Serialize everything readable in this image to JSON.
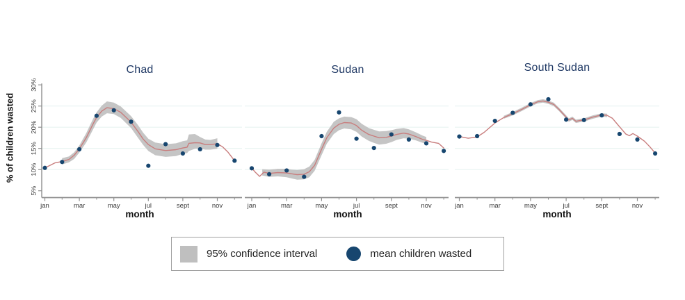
{
  "figure": {
    "y_axis_title": "% of children wasted",
    "x_axis_title": "month",
    "y_ticks": {
      "values": [
        5,
        10,
        15,
        20,
        25,
        30
      ],
      "labels": [
        "5%",
        "10%",
        "15%",
        "20%",
        "25%",
        "30%"
      ]
    },
    "gridline_values": [
      10,
      15,
      20,
      25
    ],
    "x_ticks": {
      "months": [
        1,
        3,
        5,
        7,
        9,
        11
      ],
      "labels": [
        "jan",
        "mar",
        "may",
        "jul",
        "sept",
        "nov"
      ],
      "minor_months": [
        2,
        4,
        6,
        8,
        10,
        12
      ]
    }
  },
  "legend": {
    "ci_label": "95% confidence interval",
    "mean_label": "mean children wasted"
  },
  "colors": {
    "title_text": "#1f3864",
    "mean_dot": "#17466f",
    "trend_line": "#c87d7d",
    "ci_band": "#c5c5c5",
    "gridline": "#e7f3f1",
    "axis": "#8f8f8f",
    "tick_text": "#3b3b3b",
    "legend_swatch": "#bfbfbf",
    "legend_border": "#a0a0a0"
  },
  "chart_data": [
    {
      "type": "line",
      "title": "Chad",
      "xlabel": "month",
      "ylabel": "% of children wasted",
      "ylim": [
        5,
        30
      ],
      "x_range_months": [
        1,
        12
      ],
      "months": [
        "jan",
        "feb",
        "mar",
        "apr",
        "may",
        "jun",
        "jul",
        "aug",
        "sep",
        "oct",
        "nov",
        "dec"
      ],
      "mean_monthly": [
        10.4,
        11.8,
        14.8,
        22.7,
        24.0,
        21.3,
        10.9,
        16.0,
        13.8,
        14.8,
        15.8,
        12.1
      ],
      "smooth_line": [
        [
          1,
          10.4
        ],
        [
          1.3,
          11.0
        ],
        [
          1.6,
          11.6
        ],
        [
          2,
          11.9
        ],
        [
          2.4,
          12.4
        ],
        [
          2.7,
          13.4
        ],
        [
          3,
          14.9
        ],
        [
          3.4,
          17.5
        ],
        [
          3.8,
          20.8
        ],
        [
          4,
          22.3
        ],
        [
          4.3,
          23.8
        ],
        [
          4.6,
          24.6
        ],
        [
          5,
          24.4
        ],
        [
          5.4,
          23.5
        ],
        [
          6,
          21.2
        ],
        [
          6.4,
          19.0
        ],
        [
          6.7,
          17.2
        ],
        [
          7,
          15.9
        ],
        [
          7.4,
          14.9
        ],
        [
          8,
          14.5
        ],
        [
          8.6,
          14.7
        ],
        [
          9,
          15.1
        ],
        [
          9.25,
          15.3
        ],
        [
          9.35,
          16.2
        ],
        [
          9.7,
          16.35
        ],
        [
          10,
          16.3
        ],
        [
          10.3,
          15.9
        ],
        [
          10.6,
          15.9
        ],
        [
          11,
          16.1
        ],
        [
          11.3,
          15.4
        ],
        [
          11.6,
          14.2
        ],
        [
          12,
          12.1
        ]
      ],
      "ci_band": [
        [
          2,
          11.2,
          12.7
        ],
        [
          2.4,
          11.7,
          13.1
        ],
        [
          2.7,
          12.5,
          14.1
        ],
        [
          3,
          14.0,
          15.7
        ],
        [
          3.4,
          16.4,
          18.6
        ],
        [
          3.8,
          19.5,
          22.0
        ],
        [
          4,
          21.1,
          23.5
        ],
        [
          4.3,
          22.5,
          25.1
        ],
        [
          4.6,
          23.3,
          26.1
        ],
        [
          5,
          23.1,
          25.8
        ],
        [
          5.4,
          22.2,
          24.9
        ],
        [
          6,
          19.8,
          22.6
        ],
        [
          6.4,
          17.5,
          20.5
        ],
        [
          6.7,
          15.8,
          18.7
        ],
        [
          7,
          14.4,
          17.3
        ],
        [
          7.4,
          13.4,
          16.4
        ],
        [
          8,
          13.0,
          16.0
        ],
        [
          8.6,
          13.2,
          16.2
        ],
        [
          9,
          13.7,
          16.7
        ],
        [
          9.25,
          13.9,
          16.9
        ],
        [
          9.35,
          14.4,
          18.3
        ],
        [
          9.7,
          14.9,
          18.4
        ],
        [
          10,
          15.0,
          17.7
        ],
        [
          10.3,
          14.7,
          17.1
        ],
        [
          10.6,
          14.7,
          17.0
        ],
        [
          11,
          14.9,
          17.4
        ]
      ]
    },
    {
      "type": "line",
      "title": "Sudan",
      "xlabel": "month",
      "ylabel": "% of children wasted",
      "ylim": [
        5,
        30
      ],
      "x_range_months": [
        1,
        12
      ],
      "months": [
        "jan",
        "feb",
        "mar",
        "apr",
        "may",
        "jun",
        "jul",
        "aug",
        "sep",
        "oct",
        "nov",
        "dec"
      ],
      "mean_monthly": [
        10.3,
        8.9,
        9.8,
        8.3,
        17.9,
        23.5,
        17.3,
        15.1,
        18.3,
        17.1,
        16.2,
        14.4
      ],
      "smooth_line": [
        [
          1,
          10.4
        ],
        [
          1.2,
          9.4
        ],
        [
          1.45,
          8.4
        ],
        [
          1.7,
          9.4
        ],
        [
          2,
          9.1
        ],
        [
          2.5,
          9.3
        ],
        [
          3,
          9.2
        ],
        [
          3.3,
          9.0
        ],
        [
          3.6,
          8.8
        ],
        [
          4,
          8.9
        ],
        [
          4.3,
          9.5
        ],
        [
          4.6,
          11.0
        ],
        [
          5,
          14.8
        ],
        [
          5.3,
          17.5
        ],
        [
          5.7,
          19.8
        ],
        [
          6,
          20.7
        ],
        [
          6.3,
          21.1
        ],
        [
          6.7,
          21.0
        ],
        [
          7,
          20.4
        ],
        [
          7.3,
          19.3
        ],
        [
          7.7,
          18.3
        ],
        [
          8,
          17.9
        ],
        [
          8.3,
          17.5
        ],
        [
          8.7,
          17.6
        ],
        [
          9,
          17.9
        ],
        [
          9.3,
          18.3
        ],
        [
          9.7,
          18.6
        ],
        [
          10,
          18.4
        ],
        [
          10.4,
          17.8
        ],
        [
          10.8,
          17.1
        ],
        [
          11,
          16.9
        ],
        [
          11.3,
          16.5
        ],
        [
          11.7,
          16.2
        ],
        [
          12,
          15.1
        ]
      ],
      "ci_band": [
        [
          1.6,
          8.6,
          10.1
        ],
        [
          2,
          8.3,
          10.0
        ],
        [
          2.5,
          8.4,
          10.2
        ],
        [
          3,
          8.2,
          10.2
        ],
        [
          3.3,
          7.9,
          10.0
        ],
        [
          3.6,
          7.6,
          9.9
        ],
        [
          4,
          7.7,
          10.1
        ],
        [
          4.3,
          8.2,
          10.7
        ],
        [
          4.6,
          9.7,
          12.3
        ],
        [
          5,
          13.4,
          16.2
        ],
        [
          5.3,
          16.1,
          18.9
        ],
        [
          5.7,
          18.4,
          21.3
        ],
        [
          6,
          19.3,
          22.1
        ],
        [
          6.3,
          19.7,
          22.5
        ],
        [
          6.7,
          19.5,
          22.4
        ],
        [
          7,
          18.9,
          21.9
        ],
        [
          7.3,
          17.8,
          20.8
        ],
        [
          7.7,
          16.8,
          19.8
        ],
        [
          8,
          16.3,
          19.4
        ],
        [
          8.3,
          15.9,
          19.0
        ],
        [
          8.7,
          16.1,
          19.1
        ],
        [
          9,
          16.5,
          19.3
        ],
        [
          9.3,
          17.0,
          19.6
        ],
        [
          9.7,
          17.4,
          19.8
        ],
        [
          10,
          17.3,
          19.5
        ],
        [
          10.4,
          16.9,
          18.8
        ],
        [
          10.8,
          16.3,
          18.0
        ],
        [
          11,
          16.1,
          17.7
        ]
      ]
    },
    {
      "type": "line",
      "title": "South Sudan",
      "xlabel": "month",
      "ylabel": "% of children wasted",
      "ylim": [
        5,
        30
      ],
      "x_range_months": [
        1,
        12
      ],
      "months": [
        "jan",
        "feb",
        "mar",
        "apr",
        "may",
        "jun",
        "jul",
        "aug",
        "sep",
        "oct",
        "nov",
        "dec"
      ],
      "mean_monthly": [
        17.8,
        17.9,
        21.5,
        23.4,
        25.4,
        26.6,
        21.8,
        21.7,
        22.8,
        18.4,
        17.1,
        13.8
      ],
      "smooth_line": [
        [
          1,
          17.8
        ],
        [
          1.5,
          17.4
        ],
        [
          2,
          17.7
        ],
        [
          2.4,
          18.8
        ],
        [
          3,
          21.0
        ],
        [
          3.5,
          22.3
        ],
        [
          4,
          23.2
        ],
        [
          4.5,
          24.2
        ],
        [
          5,
          25.3
        ],
        [
          5.4,
          26.0
        ],
        [
          5.7,
          26.2
        ],
        [
          6,
          25.9
        ],
        [
          6.3,
          25.4
        ],
        [
          6.6,
          24.2
        ],
        [
          7,
          22.4
        ],
        [
          7.15,
          21.7
        ],
        [
          7.35,
          22.1
        ],
        [
          7.55,
          21.4
        ],
        [
          7.8,
          21.6
        ],
        [
          8,
          21.7
        ],
        [
          8.5,
          22.4
        ],
        [
          9,
          22.9
        ],
        [
          9.3,
          22.8
        ],
        [
          9.6,
          22.1
        ],
        [
          10,
          20.1
        ],
        [
          10.35,
          18.4
        ],
        [
          10.55,
          18.0
        ],
        [
          10.75,
          18.5
        ],
        [
          11,
          17.9
        ],
        [
          11.4,
          16.7
        ],
        [
          11.7,
          15.4
        ],
        [
          12,
          13.9
        ]
      ],
      "ci_band": [
        [
          3.5,
          22.0,
          22.7
        ],
        [
          4,
          22.8,
          23.6
        ],
        [
          4.5,
          23.8,
          24.6
        ],
        [
          5,
          24.9,
          25.7
        ],
        [
          5.4,
          25.6,
          26.4
        ],
        [
          5.7,
          25.8,
          26.6
        ],
        [
          6,
          25.5,
          26.3
        ],
        [
          6.3,
          25.0,
          25.8
        ],
        [
          6.6,
          23.8,
          24.6
        ],
        [
          7,
          22.0,
          22.8
        ],
        [
          7.15,
          21.3,
          22.1
        ],
        [
          7.35,
          21.7,
          22.5
        ],
        [
          7.55,
          21.0,
          21.8
        ],
        [
          7.8,
          21.2,
          22.0
        ],
        [
          8,
          21.3,
          22.1
        ],
        [
          8.5,
          22.0,
          22.8
        ],
        [
          9,
          22.5,
          23.3
        ],
        [
          9.3,
          22.4,
          23.2
        ]
      ]
    }
  ]
}
